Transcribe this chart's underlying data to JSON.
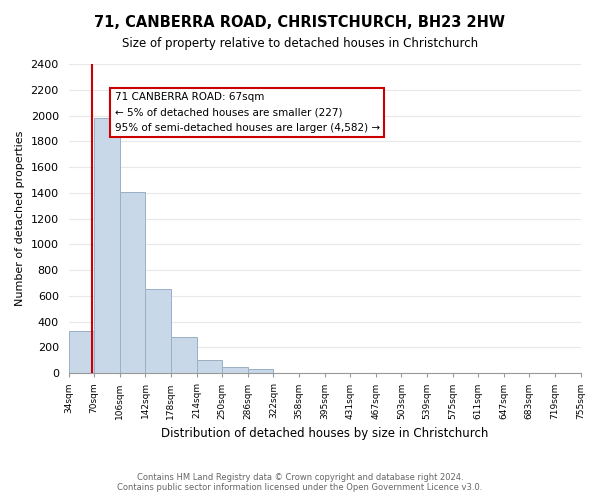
{
  "title": "71, CANBERRA ROAD, CHRISTCHURCH, BH23 2HW",
  "subtitle": "Size of property relative to detached houses in Christchurch",
  "xlabel": "Distribution of detached houses by size in Christchurch",
  "ylabel": "Number of detached properties",
  "footer_line1": "Contains HM Land Registry data © Crown copyright and database right 2024.",
  "footer_line2": "Contains public sector information licensed under the Open Government Licence v3.0.",
  "bin_labels": [
    "34sqm",
    "70sqm",
    "106sqm",
    "142sqm",
    "178sqm",
    "214sqm",
    "250sqm",
    "286sqm",
    "322sqm",
    "358sqm",
    "395sqm",
    "431sqm",
    "467sqm",
    "503sqm",
    "539sqm",
    "575sqm",
    "611sqm",
    "647sqm",
    "683sqm",
    "719sqm",
    "755sqm"
  ],
  "bar_values": [
    325,
    1980,
    1410,
    655,
    280,
    105,
    50,
    30,
    0,
    0,
    0,
    0,
    0,
    0,
    0,
    0,
    0,
    0,
    0,
    0
  ],
  "bar_color": "#c8d8e8",
  "bar_edge_color": "#9ab0c4",
  "ylim": [
    0,
    2400
  ],
  "yticks": [
    0,
    200,
    400,
    600,
    800,
    1000,
    1200,
    1400,
    1600,
    1800,
    2000,
    2200,
    2400
  ],
  "property_line_bin_index": 0.917,
  "annotation_box_title": "71 CANBERRA ROAD: 67sqm",
  "annotation_line1": "← 5% of detached houses are smaller (227)",
  "annotation_line2": "95% of semi-detached houses are larger (4,582) →",
  "red_line_color": "#cc0000",
  "annotation_box_edge_color": "#cc0000",
  "grid_color": "#e8e8e8"
}
